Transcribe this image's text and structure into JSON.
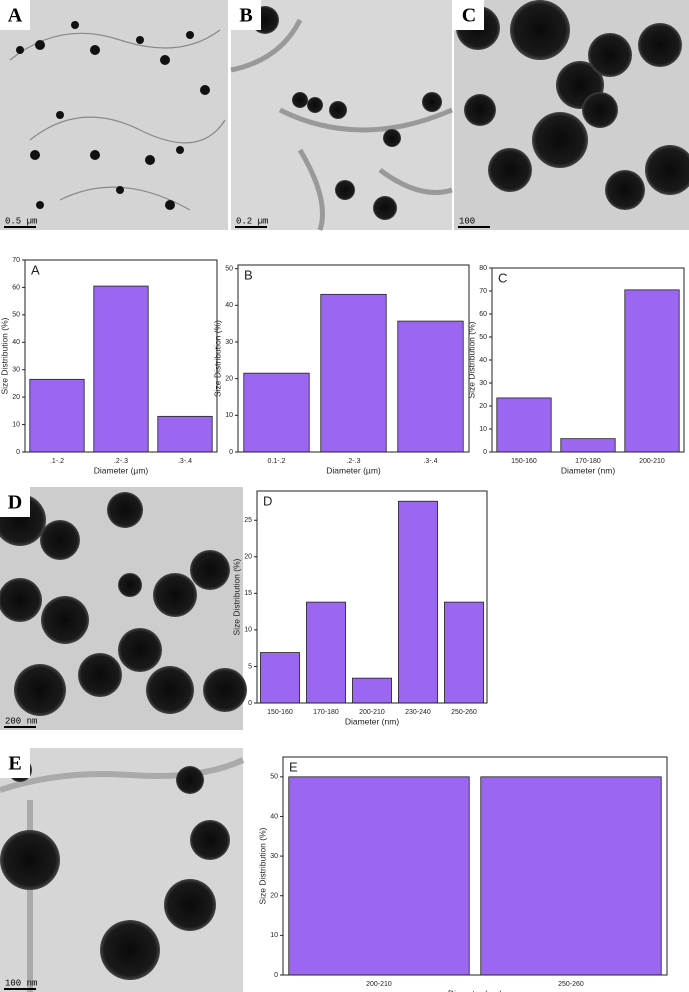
{
  "images": [
    {
      "label": "A",
      "scale": "0.5 µm"
    },
    {
      "label": "B",
      "scale": "0.2 µm"
    },
    {
      "label": "C",
      "scale": "100"
    },
    {
      "label": "D",
      "scale": "200 nm"
    },
    {
      "label": "E",
      "scale": "100 nm"
    }
  ],
  "chart_data": [
    {
      "type": "bar",
      "title": "A",
      "y_label": "Size Distribution (%)",
      "x_label": "Diameter (µm)",
      "categories": [
        ".1-.2",
        ".2-.3",
        ".3-.4"
      ],
      "values": [
        26.5,
        60.5,
        13
      ],
      "color": "#9b66f0",
      "ylim": [
        0,
        70
      ],
      "yticks": [
        0,
        10,
        20,
        30,
        40,
        50,
        60,
        70
      ]
    },
    {
      "type": "bar",
      "title": "B",
      "y_label": "Size Distribution (%)",
      "x_label": "Diameter (µm)",
      "categories": [
        "0.1-.2",
        ".2-.3",
        ".3-.4"
      ],
      "values": [
        21.5,
        43,
        35.7
      ],
      "color": "#9b66f0",
      "ylim": [
        0,
        51
      ],
      "yticks": [
        0,
        10,
        20,
        30,
        40,
        50
      ]
    },
    {
      "type": "bar",
      "title": "C",
      "y_label": "Size Distribution (%)",
      "x_label": "Diameter (nm)",
      "categories": [
        "150-160",
        "170-180",
        "200-210"
      ],
      "values": [
        23.5,
        5.8,
        70.5
      ],
      "color": "#9b66f0",
      "ylim": [
        0,
        80
      ],
      "yticks": [
        0,
        10,
        20,
        30,
        40,
        50,
        60,
        70,
        80
      ]
    },
    {
      "type": "bar",
      "title": "D",
      "y_label": "Size Distribution (%)",
      "x_label": "Diameter (nm)",
      "categories": [
        "150-160",
        "170-180",
        "200-210",
        "230-240",
        "250-260"
      ],
      "values": [
        6.9,
        13.8,
        3.4,
        27.6,
        13.8
      ],
      "color": "#9b66f0",
      "ylim": [
        0,
        29
      ],
      "yticks": [
        0,
        5,
        10,
        15,
        20,
        25
      ]
    },
    {
      "type": "bar",
      "title": "E",
      "y_label": "Size Distribution (%)",
      "x_label": "Diameter (nm)",
      "categories": [
        "200-210",
        "250-260"
      ],
      "values": [
        50,
        50
      ],
      "color": "#9b66f0",
      "ylim": [
        0,
        55
      ],
      "yticks": [
        0,
        10,
        20,
        30,
        40,
        50
      ]
    }
  ]
}
